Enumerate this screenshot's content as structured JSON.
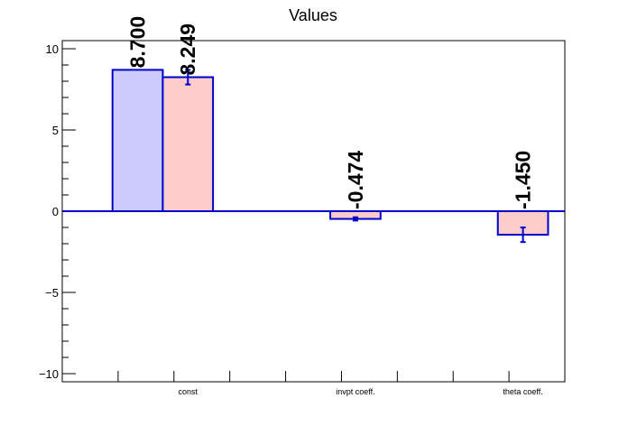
{
  "chart_data": {
    "type": "bar",
    "title": "Values",
    "categories": [
      "const",
      "invpt coeff.",
      "theta coeff."
    ],
    "ylim": [
      -10.5,
      10.5
    ],
    "yticks": [
      -10,
      -5,
      0,
      5,
      10
    ],
    "grid": false,
    "series": [
      {
        "color": "#ccccff",
        "edge_color": "#0000cc",
        "values": [
          8.7,
          null,
          null
        ],
        "labels": [
          "8.700",
          "",
          ""
        ],
        "errors": [
          null,
          null,
          null
        ]
      },
      {
        "color": "#ffcccc",
        "edge_color": "#0000cc",
        "values": [
          8.249,
          -0.474,
          -1.45
        ],
        "labels": [
          "8.249",
          "-0.474",
          "-1.450"
        ],
        "errors": [
          0.45,
          0.1,
          0.45
        ]
      }
    ]
  }
}
